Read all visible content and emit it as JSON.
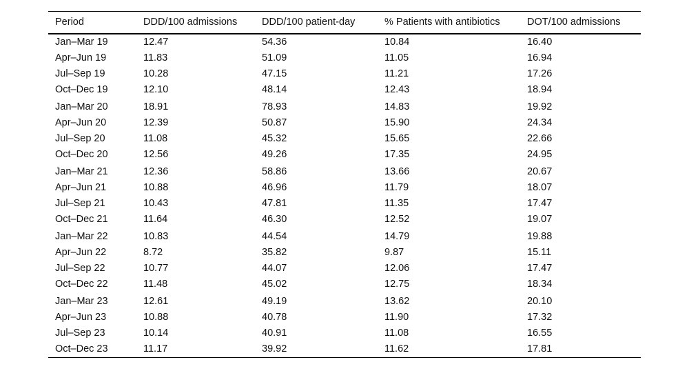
{
  "page": {
    "background": "#ffffff",
    "text_color": "#111111",
    "rule_color": "#000000"
  },
  "chart_data": {
    "type": "table",
    "title": "",
    "columns": [
      "Period",
      "DDD/100 admissions",
      "DDD/100 patient-day",
      "% Patients with antibiotics",
      "DOT/100 admissions"
    ],
    "rows": [
      [
        "Jan–Mar 19",
        "12.47",
        "54.36",
        "10.84",
        "16.40"
      ],
      [
        "Apr–Jun 19",
        "11.83",
        "51.09",
        "11.05",
        "16.94"
      ],
      [
        "Jul–Sep 19",
        "10.28",
        "47.15",
        "11.21",
        "17.26"
      ],
      [
        "Oct–Dec 19",
        "12.10",
        "48.14",
        "12.43",
        "18.94"
      ],
      [
        "Jan–Mar 20",
        "18.91",
        "78.93",
        "14.83",
        "19.92"
      ],
      [
        "Apr–Jun 20",
        "12.39",
        "50.87",
        "15.90",
        "24.34"
      ],
      [
        "Jul–Sep 20",
        "11.08",
        "45.32",
        "15.65",
        "22.66"
      ],
      [
        "Oct–Dec 20",
        "12.56",
        "49.26",
        "17.35",
        "24.95"
      ],
      [
        "Jan–Mar 21",
        "12.36",
        "58.86",
        "13.66",
        "20.67"
      ],
      [
        "Apr–Jun 21",
        "10.88",
        "46.96",
        "11.79",
        "18.07"
      ],
      [
        "Jul–Sep 21",
        "10.43",
        "47.81",
        "11.35",
        "17.47"
      ],
      [
        "Oct–Dec 21",
        "11.64",
        "46.30",
        "12.52",
        "19.07"
      ],
      [
        "Jan–Mar 22",
        "10.83",
        "44.54",
        "14.79",
        "19.88"
      ],
      [
        "Apr–Jun 22",
        "8.72",
        "35.82",
        "9.87",
        "15.11"
      ],
      [
        "Jul–Sep 22",
        "10.77",
        "44.07",
        "12.06",
        "17.47"
      ],
      [
        "Oct–Dec 22",
        "11.48",
        "45.02",
        "12.75",
        "18.34"
      ],
      [
        "Jan–Mar 23",
        "12.61",
        "49.19",
        "13.62",
        "20.10"
      ],
      [
        "Apr–Jun 23",
        "10.88",
        "40.78",
        "11.90",
        "17.32"
      ],
      [
        "Jul–Sep 23",
        "10.14",
        "40.91",
        "11.08",
        "16.55"
      ],
      [
        "Oct–Dec 23",
        "11.17",
        "39.92",
        "11.62",
        "17.81"
      ]
    ],
    "layout_hints": {
      "row_group_size": 4,
      "style": "booktabs",
      "column_alignment": "left",
      "header_bold": false
    }
  }
}
